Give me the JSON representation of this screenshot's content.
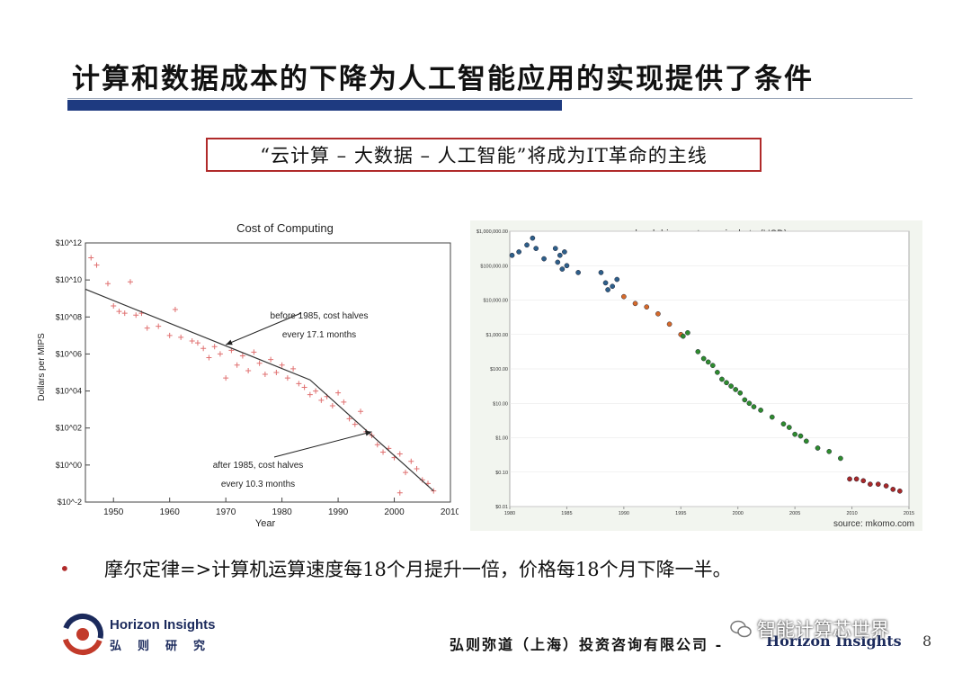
{
  "slide": {
    "title": "计算和数据成本的下降为人工智能应用的实现提供了条件",
    "headline": "“云计算 – 大数据 – 人工智能”将成为IT革命的主线",
    "bullet": "摩尔定律=>计算机运算速度每18个月提升一倍，价格每18个月下降一半。"
  },
  "footer": {
    "logo_en": "Horizon Insights",
    "logo_cn": "弘则研究",
    "company": "弘则弥道（上海）投资咨询有限公司 -",
    "brand": "Horizon Insights",
    "page": "8",
    "watermark": "智能计算芯世界"
  },
  "colors": {
    "title_bar": "#1e3a80",
    "headline_border": "#b02a2a",
    "cost_markers": "#e07070",
    "hdd_blue": "#2d5f8a",
    "hdd_orange": "#d66a2a",
    "hdd_green": "#2e8b2e",
    "hdd_red": "#a82828"
  },
  "chart_data": [
    {
      "type": "scatter",
      "title": "Cost of Computing",
      "xlabel": "Year",
      "ylabel": "Dollars per MIPS",
      "xlim": [
        1945,
        2010
      ],
      "ylim_log10": [
        -2,
        12
      ],
      "x_ticks": [
        "1950",
        "1960",
        "1970",
        "1980",
        "1990",
        "2000",
        "2010"
      ],
      "y_ticks": [
        "$10^-2",
        "$10^00",
        "$10^02",
        "$10^04",
        "$10^06",
        "$10^08",
        "$10^10",
        "$10^12"
      ],
      "points_log10": [
        [
          1946,
          11.2
        ],
        [
          1947,
          10.8
        ],
        [
          1949,
          9.8
        ],
        [
          1950,
          8.6
        ],
        [
          1951,
          8.3
        ],
        [
          1952,
          8.2
        ],
        [
          1953,
          9.9
        ],
        [
          1954,
          8.1
        ],
        [
          1955,
          8.2
        ],
        [
          1956,
          7.4
        ],
        [
          1958,
          7.5
        ],
        [
          1960,
          7.0
        ],
        [
          1961,
          8.4
        ],
        [
          1962,
          6.9
        ],
        [
          1964,
          6.7
        ],
        [
          1965,
          6.6
        ],
        [
          1966,
          6.3
        ],
        [
          1967,
          5.8
        ],
        [
          1968,
          6.4
        ],
        [
          1969,
          6.0
        ],
        [
          1970,
          4.7
        ],
        [
          1971,
          6.2
        ],
        [
          1972,
          5.4
        ],
        [
          1973,
          5.9
        ],
        [
          1974,
          5.1
        ],
        [
          1975,
          6.1
        ],
        [
          1976,
          5.5
        ],
        [
          1977,
          4.9
        ],
        [
          1978,
          5.7
        ],
        [
          1979,
          5.0
        ],
        [
          1980,
          5.4
        ],
        [
          1981,
          4.7
        ],
        [
          1982,
          5.2
        ],
        [
          1983,
          4.4
        ],
        [
          1984,
          4.2
        ],
        [
          1985,
          3.8
        ],
        [
          1986,
          4.0
        ],
        [
          1987,
          3.5
        ],
        [
          1988,
          3.7
        ],
        [
          1989,
          3.2
        ],
        [
          1990,
          3.9
        ],
        [
          1991,
          3.4
        ],
        [
          1992,
          2.5
        ],
        [
          1993,
          2.2
        ],
        [
          1994,
          2.9
        ],
        [
          1995,
          1.8
        ],
        [
          1996,
          1.6
        ],
        [
          1997,
          1.1
        ],
        [
          1998,
          0.7
        ],
        [
          1999,
          0.9
        ],
        [
          2000,
          0.4
        ],
        [
          2001,
          0.6
        ],
        [
          2002,
          -0.4
        ],
        [
          2003,
          0.2
        ],
        [
          2004,
          -0.2
        ],
        [
          2005,
          -0.8
        ],
        [
          2006,
          -1.0
        ],
        [
          2007,
          -1.4
        ],
        [
          2001,
          -1.5
        ]
      ],
      "trend_line_log10": [
        [
          1945,
          9.5
        ],
        [
          1985,
          4.6
        ],
        [
          2007,
          -1.4
        ]
      ],
      "annotations": [
        {
          "text": [
            "before 1985, cost halves",
            "every 17.1 months"
          ],
          "points_to": [
            1970,
            6.5
          ]
        },
        {
          "text": [
            "after 1985, cost halves",
            "every 10.3 months"
          ],
          "points_to": [
            1996,
            1.8
          ]
        }
      ]
    },
    {
      "type": "scatter",
      "title": "hard drive cost per gigabyte (USD)",
      "source": "source: mkomo.com",
      "xlim": [
        1980,
        2015
      ],
      "ylim_log10": [
        -2,
        6
      ],
      "x_ticks": [
        "1980",
        "1985",
        "1990",
        "1995",
        "2000",
        "2005",
        "2010",
        "2015"
      ],
      "y_ticks": [
        "$0.01",
        "$0.10",
        "$1.00",
        "$10.00",
        "$100.00",
        "$1,000.00",
        "$10,000.00",
        "$100,000.00",
        "$1,000,000.00"
      ],
      "series": [
        {
          "name": "blue",
          "points_log10": [
            [
              1980.2,
              5.3
            ],
            [
              1980.8,
              5.4
            ],
            [
              1981.5,
              5.6
            ],
            [
              1982,
              5.8
            ],
            [
              1982.3,
              5.5
            ],
            [
              1983,
              5.2
            ],
            [
              1984,
              5.5
            ],
            [
              1984.2,
              5.1
            ],
            [
              1984.4,
              5.3
            ],
            [
              1984.6,
              4.9
            ],
            [
              1984.8,
              5.4
            ],
            [
              1985,
              5.0
            ],
            [
              1986,
              4.8
            ],
            [
              1988,
              4.8
            ],
            [
              1988.4,
              4.5
            ],
            [
              1988.6,
              4.3
            ],
            [
              1989,
              4.4
            ],
            [
              1989.4,
              4.6
            ]
          ]
        },
        {
          "name": "orange",
          "points_log10": [
            [
              1990,
              4.1
            ],
            [
              1991,
              3.9
            ],
            [
              1992,
              3.8
            ],
            [
              1993,
              3.6
            ],
            [
              1994,
              3.3
            ],
            [
              1995,
              3.0
            ]
          ]
        },
        {
          "name": "green",
          "points_log10": [
            [
              1995.2,
              2.95
            ],
            [
              1995.6,
              3.05
            ],
            [
              1996.5,
              2.5
            ],
            [
              1997,
              2.3
            ],
            [
              1997.4,
              2.2
            ],
            [
              1997.8,
              2.1
            ],
            [
              1998.2,
              1.9
            ],
            [
              1998.6,
              1.7
            ],
            [
              1999,
              1.6
            ],
            [
              1999.4,
              1.5
            ],
            [
              1999.8,
              1.4
            ],
            [
              2000.2,
              1.3
            ],
            [
              2000.6,
              1.1
            ],
            [
              2001,
              1.0
            ],
            [
              2001.4,
              0.9
            ],
            [
              2002,
              0.8
            ],
            [
              2003,
              0.6
            ],
            [
              2004,
              0.4
            ],
            [
              2004.5,
              0.3
            ],
            [
              2005,
              0.1
            ],
            [
              2005.5,
              0.05
            ],
            [
              2006,
              -0.1
            ],
            [
              2007,
              -0.3
            ],
            [
              2008,
              -0.4
            ],
            [
              2009,
              -0.6
            ]
          ]
        },
        {
          "name": "red",
          "points_log10": [
            [
              2009.8,
              -1.2
            ],
            [
              2010.4,
              -1.2
            ],
            [
              2011,
              -1.25
            ],
            [
              2011.6,
              -1.35
            ],
            [
              2012.3,
              -1.35
            ],
            [
              2013,
              -1.4
            ],
            [
              2013.6,
              -1.5
            ],
            [
              2014.2,
              -1.55
            ]
          ]
        }
      ]
    }
  ]
}
